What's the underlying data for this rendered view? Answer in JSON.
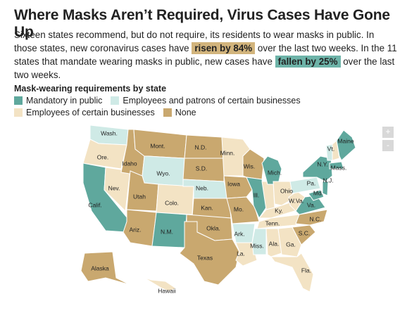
{
  "header": {
    "title": "Where Masks Aren’t Required, Virus Cases Have Gone Up",
    "description": [
      "Sixteen states recommend, but do not require, its residents to wear masks in public. In those states, new coronavirus cases have ",
      "risen by 84%",
      " over the last two weeks. In the 11 states that mandate wearing masks in public, new cases have ",
      "fallen by 25%",
      " over the last two weeks."
    ]
  },
  "legend": {
    "title": "Mask-wearing requirements by state",
    "items": [
      {
        "label": "Mandatory in public",
        "color": "#5fa89d"
      },
      {
        "label": "Employees and patrons of certain businesses",
        "color": "#cfeae6"
      },
      {
        "label": "Employees of certain businesses",
        "color": "#f3e3c4"
      },
      {
        "label": "None",
        "color": "#c9a86f"
      }
    ]
  },
  "map": {
    "zoom": [
      "+",
      "-"
    ],
    "states": [
      {
        "label": "Wash.",
        "category": 1
      },
      {
        "label": "Ore.",
        "category": 2
      },
      {
        "label": "Calif.",
        "category": 0
      },
      {
        "label": "Nev.",
        "category": 2
      },
      {
        "label": "Idaho",
        "category": 3
      },
      {
        "label": "Mont.",
        "category": 3
      },
      {
        "label": "Wyo.",
        "category": 1
      },
      {
        "label": "Utah",
        "category": 3
      },
      {
        "label": "Colo.",
        "category": 2
      },
      {
        "label": "Ariz.",
        "category": 3
      },
      {
        "label": "N.M.",
        "category": 0
      },
      {
        "label": "N.D.",
        "category": 3
      },
      {
        "label": "S.D.",
        "category": 3
      },
      {
        "label": "Neb.",
        "category": 1
      },
      {
        "label": "Kan.",
        "category": 3
      },
      {
        "label": "Okla.",
        "category": 3
      },
      {
        "label": "Texas",
        "category": 3
      },
      {
        "label": "Minn.",
        "category": 2
      },
      {
        "label": "Iowa",
        "category": 3
      },
      {
        "label": "Mo.",
        "category": 3
      },
      {
        "label": "Ark.",
        "category": 1
      },
      {
        "label": "La.",
        "category": 2
      },
      {
        "label": "Wis.",
        "category": 3
      },
      {
        "label": "Ill.",
        "category": 0
      },
      {
        "label": null,
        "category": 2
      },
      {
        "label": "Mich.",
        "category": 0
      },
      {
        "label": "Ohio",
        "category": 2
      },
      {
        "label": "Ky.",
        "category": 2
      },
      {
        "label": "Tenn.",
        "category": 2
      },
      {
        "label": "Miss.",
        "category": 1
      },
      {
        "label": "Ala.",
        "category": 2
      },
      {
        "label": "Ga.",
        "category": 2
      },
      {
        "label": "Fla.",
        "category": 2
      },
      {
        "label": "S.C.",
        "category": 3
      },
      {
        "label": "N.C.",
        "category": 3
      },
      {
        "label": "Va.",
        "category": 0
      },
      {
        "label": "W.Va.",
        "category": 2
      },
      {
        "label": "Pa.",
        "category": 1
      },
      {
        "label": "N.Y.",
        "category": 0
      },
      {
        "label": "Vt.",
        "category": 1
      },
      {
        "label": null,
        "category": 2
      },
      {
        "label": "Maine",
        "category": 0
      },
      {
        "label": "Mass.",
        "category": 0
      },
      {
        "label": "N.J.",
        "category": 0
      },
      {
        "label": "Md.",
        "category": 0
      },
      {
        "label": "Alaska",
        "category": 3
      },
      {
        "label": "Hawaii",
        "category": 2
      }
    ]
  }
}
